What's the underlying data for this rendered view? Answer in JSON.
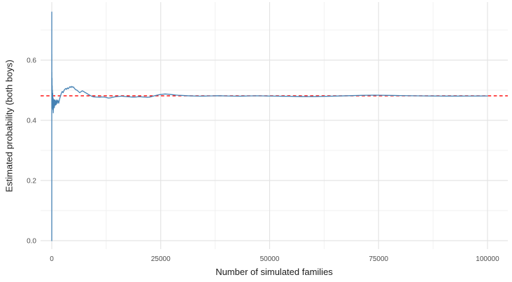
{
  "figure": {
    "background_color": "#ffffff",
    "panel_background": "#ffffff",
    "grid_major_color": "#e2e2e2",
    "grid_minor_color": "#efefef",
    "tick_label_color": "#4d4d4d",
    "axis_title_color": "#1a1a1a",
    "x_axis": {
      "title": "Number of simulated families",
      "major_ticks": [
        0,
        25000,
        50000,
        75000,
        100000
      ],
      "tick_labels": [
        "0",
        "25000",
        "50000",
        "75000",
        "100000"
      ],
      "minor_ticks": [
        12500,
        37500,
        62500,
        87500
      ],
      "range": [
        -2570,
        104660
      ]
    },
    "y_axis": {
      "title": "Estimated probability (both boys)",
      "major_ticks": [
        0.0,
        0.2,
        0.4,
        0.6
      ],
      "tick_labels": [
        "0.0",
        "0.2",
        "0.4",
        "0.6"
      ],
      "minor_ticks": [
        0.1,
        0.3,
        0.5,
        0.7
      ],
      "range": [
        -0.028,
        0.793
      ]
    }
  },
  "chart_data": {
    "type": "line",
    "title": "",
    "xlabel": "Number of simulated families",
    "ylabel": "Estimated probability (both boys)",
    "xlim": [
      -2570,
      104660
    ],
    "ylim": [
      -0.028,
      0.793
    ],
    "grid": true,
    "legend": false,
    "reference_line": {
      "orientation": "horizontal",
      "value": 0.4815,
      "color": "#ff0000",
      "linetype": "dashed",
      "width": 1.4
    },
    "series": [
      {
        "name": "estimated-probability",
        "color": "#4682B4",
        "width": 1.3,
        "points": [
          [
            1,
            0.0
          ],
          [
            3,
            0.76
          ],
          [
            4,
            0.5
          ],
          [
            6,
            0.67
          ],
          [
            9,
            0.44
          ],
          [
            13,
            0.62
          ],
          [
            18,
            0.48
          ],
          [
            25,
            0.56
          ],
          [
            32,
            0.44
          ],
          [
            40,
            0.52
          ],
          [
            50,
            0.44
          ],
          [
            65,
            0.54
          ],
          [
            80,
            0.46
          ],
          [
            100,
            0.515
          ],
          [
            125,
            0.45
          ],
          [
            150,
            0.5
          ],
          [
            180,
            0.44
          ],
          [
            220,
            0.49
          ],
          [
            260,
            0.435
          ],
          [
            300,
            0.475
          ],
          [
            350,
            0.425
          ],
          [
            400,
            0.47
          ],
          [
            460,
            0.44
          ],
          [
            520,
            0.468
          ],
          [
            600,
            0.443
          ],
          [
            700,
            0.468
          ],
          [
            800,
            0.45
          ],
          [
            900,
            0.465
          ],
          [
            1000,
            0.452
          ],
          [
            1100,
            0.468
          ],
          [
            1250,
            0.456
          ],
          [
            1400,
            0.467
          ],
          [
            1600,
            0.457
          ],
          [
            1800,
            0.471
          ],
          [
            2000,
            0.481
          ],
          [
            2200,
            0.49
          ],
          [
            2400,
            0.496
          ],
          [
            2600,
            0.492
          ],
          [
            2800,
            0.499
          ],
          [
            3000,
            0.503
          ],
          [
            3200,
            0.506
          ],
          [
            3400,
            0.503
          ],
          [
            3600,
            0.508
          ],
          [
            3800,
            0.505
          ],
          [
            4000,
            0.509
          ],
          [
            4200,
            0.512
          ],
          [
            4400,
            0.509
          ],
          [
            4600,
            0.513
          ],
          [
            4800,
            0.51
          ],
          [
            5000,
            0.511
          ],
          [
            5200,
            0.506
          ],
          [
            5500,
            0.502
          ],
          [
            5800,
            0.5
          ],
          [
            6100,
            0.496
          ],
          [
            6400,
            0.492
          ],
          [
            6700,
            0.495
          ],
          [
            7000,
            0.498
          ],
          [
            7300,
            0.496
          ],
          [
            7600,
            0.493
          ],
          [
            8000,
            0.49
          ],
          [
            8400,
            0.486
          ],
          [
            8800,
            0.483
          ],
          [
            9200,
            0.48
          ],
          [
            9600,
            0.478
          ],
          [
            10000,
            0.4775
          ],
          [
            10500,
            0.4772
          ],
          [
            11000,
            0.4768
          ],
          [
            11500,
            0.4778
          ],
          [
            12000,
            0.4772
          ],
          [
            12500,
            0.4762
          ],
          [
            13000,
            0.474
          ],
          [
            13500,
            0.4748
          ],
          [
            14000,
            0.4768
          ],
          [
            14500,
            0.4782
          ],
          [
            15000,
            0.479
          ],
          [
            15500,
            0.4796
          ],
          [
            16000,
            0.4804
          ],
          [
            16500,
            0.4796
          ],
          [
            17000,
            0.479
          ],
          [
            17500,
            0.4784
          ],
          [
            18000,
            0.4779
          ],
          [
            18500,
            0.4774
          ],
          [
            19000,
            0.477
          ],
          [
            19500,
            0.4778
          ],
          [
            20000,
            0.4788
          ],
          [
            20500,
            0.4781
          ],
          [
            21000,
            0.4776
          ],
          [
            21500,
            0.477
          ],
          [
            22000,
            0.4766
          ],
          [
            22500,
            0.4774
          ],
          [
            23000,
            0.4792
          ],
          [
            23500,
            0.4812
          ],
          [
            24000,
            0.4832
          ],
          [
            24500,
            0.4848
          ],
          [
            25000,
            0.4858
          ],
          [
            25500,
            0.4868
          ],
          [
            26000,
            0.4876
          ],
          [
            26500,
            0.4872
          ],
          [
            27000,
            0.4864
          ],
          [
            27500,
            0.4856
          ],
          [
            28000,
            0.4848
          ],
          [
            28500,
            0.484
          ],
          [
            29000,
            0.4834
          ],
          [
            30000,
            0.4826
          ],
          [
            31000,
            0.4818
          ],
          [
            32000,
            0.4812
          ],
          [
            33000,
            0.4808
          ],
          [
            34000,
            0.4804
          ],
          [
            35000,
            0.4806
          ],
          [
            36000,
            0.481
          ],
          [
            37000,
            0.4814
          ],
          [
            38000,
            0.4818
          ],
          [
            39000,
            0.4815
          ],
          [
            40000,
            0.4811
          ],
          [
            41000,
            0.4808
          ],
          [
            42000,
            0.4805
          ],
          [
            43000,
            0.4803
          ],
          [
            44000,
            0.4806
          ],
          [
            45000,
            0.481
          ],
          [
            46000,
            0.4813
          ],
          [
            47000,
            0.4816
          ],
          [
            48000,
            0.4813
          ],
          [
            49000,
            0.481
          ],
          [
            50000,
            0.4808
          ],
          [
            51500,
            0.4804
          ],
          [
            53000,
            0.4801
          ],
          [
            54500,
            0.4798
          ],
          [
            56000,
            0.4795
          ],
          [
            57500,
            0.4792
          ],
          [
            59000,
            0.479
          ],
          [
            60500,
            0.4792
          ],
          [
            62000,
            0.4796
          ],
          [
            63500,
            0.4801
          ],
          [
            65000,
            0.4806
          ],
          [
            66500,
            0.4812
          ],
          [
            68000,
            0.4818
          ],
          [
            69500,
            0.4824
          ],
          [
            71000,
            0.4829
          ],
          [
            72500,
            0.4833
          ],
          [
            74000,
            0.4836
          ],
          [
            75500,
            0.4834
          ],
          [
            77000,
            0.483
          ],
          [
            78500,
            0.4827
          ],
          [
            80000,
            0.4823
          ],
          [
            81500,
            0.482
          ],
          [
            83000,
            0.4817
          ],
          [
            84500,
            0.4814
          ],
          [
            86000,
            0.4811
          ],
          [
            87500,
            0.4809
          ],
          [
            89000,
            0.4807
          ],
          [
            90500,
            0.4806
          ],
          [
            92000,
            0.4806
          ],
          [
            93500,
            0.4806
          ],
          [
            95000,
            0.4807
          ],
          [
            96500,
            0.4808
          ],
          [
            98000,
            0.4809
          ],
          [
            100000,
            0.481
          ]
        ]
      }
    ]
  }
}
